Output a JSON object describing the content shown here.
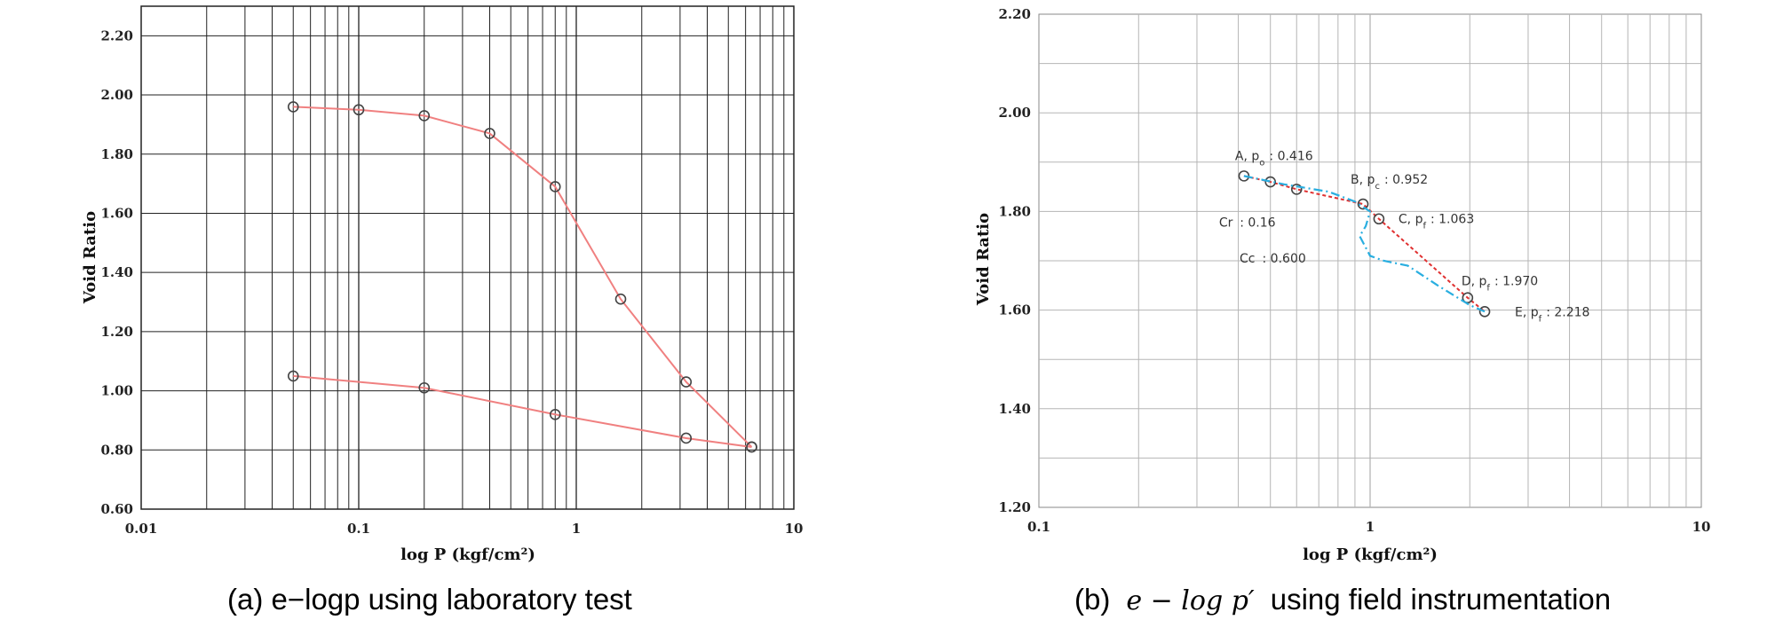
{
  "chart_data": [
    {
      "type": "line",
      "title": "",
      "xlabel": "log P (kgf/cm²)",
      "ylabel": "Void Ratio",
      "xscale": "log",
      "xlim": [
        0.01,
        10
      ],
      "ylim": [
        0.6,
        2.3
      ],
      "xticks": [
        "0.01",
        "0.1",
        "1",
        "10"
      ],
      "yticks": [
        "0.60",
        "0.80",
        "1.00",
        "1.20",
        "1.40",
        "1.60",
        "1.80",
        "2.00",
        "2.20"
      ],
      "grid": true,
      "series": [
        {
          "color": "#f08080",
          "marker": "circle",
          "x": [
            0.05,
            0.1,
            0.2,
            0.4,
            0.8,
            1.6,
            3.2,
            6.4
          ],
          "y": [
            1.96,
            1.95,
            1.93,
            1.87,
            1.69,
            1.31,
            1.03,
            0.81
          ]
        },
        {
          "color": "#f08080",
          "marker": "circle",
          "x": [
            6.4,
            3.2,
            0.8,
            0.2,
            0.05
          ],
          "y": [
            0.81,
            0.84,
            0.92,
            1.01,
            1.05
          ]
        }
      ],
      "caption": "(a) e−logp using laboratory test"
    },
    {
      "type": "line",
      "title": "",
      "xlabel": "log P (kgf/cm²)",
      "ylabel": "Void Ratio",
      "xscale": "log",
      "xlim": [
        0.1,
        10
      ],
      "ylim": [
        1.2,
        2.2
      ],
      "xticks": [
        "0.1",
        "1",
        "10"
      ],
      "yticks": [
        "1.20",
        "1.40",
        "1.60",
        "1.80",
        "2.00",
        "2.20"
      ],
      "grid": true,
      "series": [
        {
          "style": "dashed",
          "color": "#e03030",
          "marker": "circle",
          "x": [
            0.416,
            0.5,
            0.6,
            0.952,
            1.063,
            1.97,
            2.218
          ],
          "y": [
            1.872,
            1.86,
            1.845,
            1.815,
            1.785,
            1.625,
            1.597
          ]
        },
        {
          "style": "dash-dot",
          "color": "#29aee0",
          "x": [
            0.416,
            0.55,
            0.75,
            0.9,
            1.0,
            0.97,
            0.93,
            1.0,
            1.1,
            1.3,
            1.6,
            2.0,
            2.218
          ],
          "y": [
            1.872,
            1.855,
            1.84,
            1.82,
            1.8,
            1.77,
            1.75,
            1.71,
            1.7,
            1.69,
            1.65,
            1.61,
            1.597
          ]
        }
      ],
      "annotations": [
        {
          "sub": "o",
          "lead": "A, p",
          "value": ": 0.416"
        },
        {
          "sub": "c",
          "lead": "B, p",
          "value": ": 0.952"
        },
        {
          "sub": "f",
          "lead": "C, p",
          "value": ": 1.063"
        },
        {
          "sub": "f",
          "lead": "D, p",
          "value": ": 1.970"
        },
        {
          "sub": "f",
          "lead": "E, p",
          "value": ": 2.218"
        },
        {
          "lead": "Cr",
          "value": ": 0.16"
        },
        {
          "lead": "Cc",
          "value": ": 0.600"
        }
      ],
      "caption_prefix": "(b)",
      "caption_math": "e − log p′",
      "caption_suffix": "using field instrumentation"
    }
  ]
}
